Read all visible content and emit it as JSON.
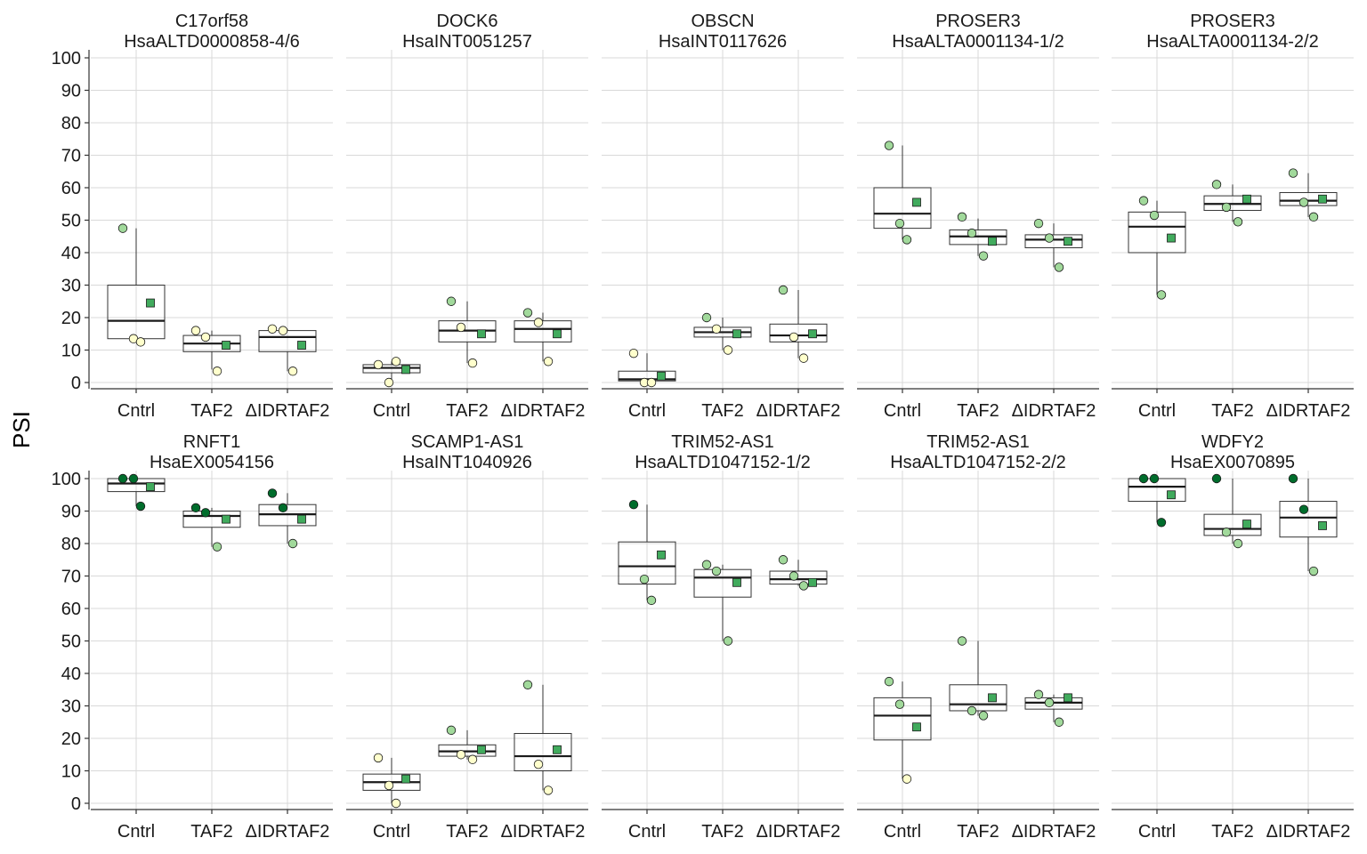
{
  "chart_data": {
    "type": "box",
    "ylabel": "PSI",
    "categories": [
      "Cntrl",
      "TAF2",
      "ΔIDRTAF2"
    ],
    "y_ticks": [
      0,
      10,
      20,
      30,
      40,
      50,
      60,
      70,
      80,
      90,
      100
    ],
    "grid": true,
    "layout": "facets 2 rows x 5 columns",
    "panels": [
      {
        "gene": "C17orf58",
        "event": "HsaALTD0000858-4/6",
        "ylim": [
          0,
          100
        ],
        "boxes": [
          {
            "q1": 13.5,
            "median": 19,
            "q3": 30,
            "whisker_low": 13,
            "whisker_high": 47.5,
            "points": [
              47.5,
              13.5,
              12.5
            ],
            "mean": 24.5
          },
          {
            "q1": 9.5,
            "median": 12,
            "q3": 14.5,
            "whisker_low": 4,
            "whisker_high": 16,
            "points": [
              16,
              14,
              3.5
            ],
            "mean": 11.5
          },
          {
            "q1": 9.5,
            "median": 14,
            "q3": 16,
            "whisker_low": 3.5,
            "whisker_high": 16.5,
            "points": [
              16.5,
              16,
              3.5
            ],
            "mean": 11.5
          }
        ]
      },
      {
        "gene": "DOCK6",
        "event": "HsaINT0051257",
        "ylim": [
          0,
          100
        ],
        "boxes": [
          {
            "q1": 3,
            "median": 4.5,
            "q3": 5.5,
            "whisker_low": 0,
            "whisker_high": 6.5,
            "points": [
              5.5,
              0,
              6.5
            ],
            "mean": 4
          },
          {
            "q1": 12.5,
            "median": 16,
            "q3": 19,
            "whisker_low": 6,
            "whisker_high": 25,
            "points": [
              25,
              17,
              6
            ],
            "mean": 15
          },
          {
            "q1": 12.5,
            "median": 16.5,
            "q3": 19,
            "whisker_low": 6.5,
            "whisker_high": 21.5,
            "points": [
              21.5,
              18.5,
              6.5
            ],
            "mean": 15
          }
        ]
      },
      {
        "gene": "OBSCN",
        "event": "HsaINT0117626",
        "ylim": [
          0,
          100
        ],
        "boxes": [
          {
            "q1": 0.5,
            "median": 1,
            "q3": 3.5,
            "whisker_low": 0,
            "whisker_high": 9,
            "points": [
              9,
              0,
              0
            ],
            "mean": 2
          },
          {
            "q1": 14,
            "median": 15.5,
            "q3": 17,
            "whisker_low": 10,
            "whisker_high": 20,
            "points": [
              20,
              16.5,
              10
            ],
            "mean": 15
          },
          {
            "q1": 12.5,
            "median": 14.5,
            "q3": 18,
            "whisker_low": 7.5,
            "whisker_high": 28.5,
            "points": [
              28.5,
              14,
              7.5
            ],
            "mean": 15
          }
        ]
      },
      {
        "gene": "PROSER3",
        "event": "HsaALTA0001134-1/2",
        "ylim": [
          0,
          100
        ],
        "boxes": [
          {
            "q1": 47.5,
            "median": 52,
            "q3": 60,
            "whisker_low": 44,
            "whisker_high": 73,
            "points": [
              73,
              49,
              44
            ],
            "mean": 55.5
          },
          {
            "q1": 42.5,
            "median": 45,
            "q3": 47,
            "whisker_low": 39,
            "whisker_high": 50.5,
            "points": [
              51,
              46,
              39
            ],
            "mean": 43.5
          },
          {
            "q1": 41.5,
            "median": 44,
            "q3": 45.5,
            "whisker_low": 35.5,
            "whisker_high": 49,
            "points": [
              49,
              44.5,
              35.5
            ],
            "mean": 43.5
          }
        ]
      },
      {
        "gene": "PROSER3",
        "event": "HsaALTA0001134-2/2",
        "ylim": [
          0,
          100
        ],
        "boxes": [
          {
            "q1": 40,
            "median": 48,
            "q3": 52.5,
            "whisker_low": 27,
            "whisker_high": 56,
            "points": [
              56,
              51.5,
              27
            ],
            "mean": 44.5
          },
          {
            "q1": 53,
            "median": 55,
            "q3": 57.5,
            "whisker_low": 49.5,
            "whisker_high": 61,
            "points": [
              61,
              54,
              49.5
            ],
            "mean": 56.5
          },
          {
            "q1": 54.5,
            "median": 56,
            "q3": 58.5,
            "whisker_low": 51,
            "whisker_high": 64.5,
            "points": [
              64.5,
              55.5,
              51
            ],
            "mean": 56.5
          }
        ]
      },
      {
        "gene": "RNFT1",
        "event": "HsaEX0054156",
        "ylim": [
          0,
          100
        ],
        "boxes": [
          {
            "q1": 96,
            "median": 98.5,
            "q3": 100,
            "whisker_low": 91.5,
            "whisker_high": 100,
            "points": [
              100,
              100,
              91.5
            ],
            "mean": 97.5
          },
          {
            "q1": 85,
            "median": 88.5,
            "q3": 90,
            "whisker_low": 79,
            "whisker_high": 91,
            "points": [
              91,
              89.5,
              79
            ],
            "mean": 87.5
          },
          {
            "q1": 85.5,
            "median": 89,
            "q3": 92,
            "whisker_low": 80,
            "whisker_high": 95.5,
            "points": [
              95.5,
              91,
              80
            ],
            "mean": 87.5
          }
        ]
      },
      {
        "gene": "SCAMP1-AS1",
        "event": "HsaINT1040926",
        "ylim": [
          0,
          100
        ],
        "boxes": [
          {
            "q1": 4,
            "median": 6.5,
            "q3": 9,
            "whisker_low": 0,
            "whisker_high": 14,
            "points": [
              14,
              5.5,
              0
            ],
            "mean": 7.5
          },
          {
            "q1": 14.5,
            "median": 16,
            "q3": 18,
            "whisker_low": 13.5,
            "whisker_high": 22.5,
            "points": [
              22.5,
              15,
              13.5
            ],
            "mean": 16.5
          },
          {
            "q1": 10,
            "median": 14.5,
            "q3": 21.5,
            "whisker_low": 4,
            "whisker_high": 36.5,
            "points": [
              36.5,
              12,
              4
            ],
            "mean": 16.5
          }
        ]
      },
      {
        "gene": "TRIM52-AS1",
        "event": "HsaALTD1047152-1/2",
        "ylim": [
          0,
          100
        ],
        "boxes": [
          {
            "q1": 67.5,
            "median": 73,
            "q3": 80.5,
            "whisker_low": 62.5,
            "whisker_high": 92,
            "points": [
              92,
              69,
              62.5
            ],
            "mean": 76.5
          },
          {
            "q1": 63.5,
            "median": 69.5,
            "q3": 72,
            "whisker_low": 50,
            "whisker_high": 73.5,
            "points": [
              73.5,
              71.5,
              50
            ],
            "mean": 68
          },
          {
            "q1": 67.5,
            "median": 69,
            "q3": 71.5,
            "whisker_low": 67,
            "whisker_high": 75,
            "points": [
              75,
              70,
              67
            ],
            "mean": 68
          }
        ]
      },
      {
        "gene": "TRIM52-AS1",
        "event": "HsaALTD1047152-2/2",
        "ylim": [
          0,
          100
        ],
        "boxes": [
          {
            "q1": 19.5,
            "median": 27,
            "q3": 32.5,
            "whisker_low": 7.5,
            "whisker_high": 37.5,
            "points": [
              37.5,
              30.5,
              7.5
            ],
            "mean": 23.5
          },
          {
            "q1": 28.5,
            "median": 30.5,
            "q3": 36.5,
            "whisker_low": 27,
            "whisker_high": 50,
            "points": [
              50,
              28.5,
              27
            ],
            "mean": 32.5
          },
          {
            "q1": 29,
            "median": 31,
            "q3": 32.5,
            "whisker_low": 25,
            "whisker_high": 33.5,
            "points": [
              33.5,
              31,
              25
            ],
            "mean": 32.5
          }
        ]
      },
      {
        "gene": "WDFY2",
        "event": "HsaEX0070895",
        "ylim": [
          0,
          100
        ],
        "boxes": [
          {
            "q1": 93,
            "median": 97.5,
            "q3": 100,
            "whisker_low": 86.5,
            "whisker_high": 100,
            "points": [
              100,
              100,
              86.5
            ],
            "mean": 95
          },
          {
            "q1": 82.5,
            "median": 84.5,
            "q3": 89,
            "whisker_low": 80,
            "whisker_high": 100,
            "points": [
              100,
              83.5,
              80
            ],
            "mean": 86
          },
          {
            "q1": 82,
            "median": 88,
            "q3": 93,
            "whisker_low": 71.5,
            "whisker_high": 100,
            "points": [
              100,
              90.5,
              71.5
            ],
            "mean": 85.5
          }
        ]
      }
    ]
  },
  "colors": {
    "point_fill_low": "#ffffcc",
    "point_fill_mid": "#a1d99b",
    "point_fill_high": "#006d2c",
    "mean_square": "#41ab5d",
    "grid": "#d9d9d9",
    "axis": "#333333",
    "box_stroke": "#333333",
    "median": "#1a1a1a"
  }
}
